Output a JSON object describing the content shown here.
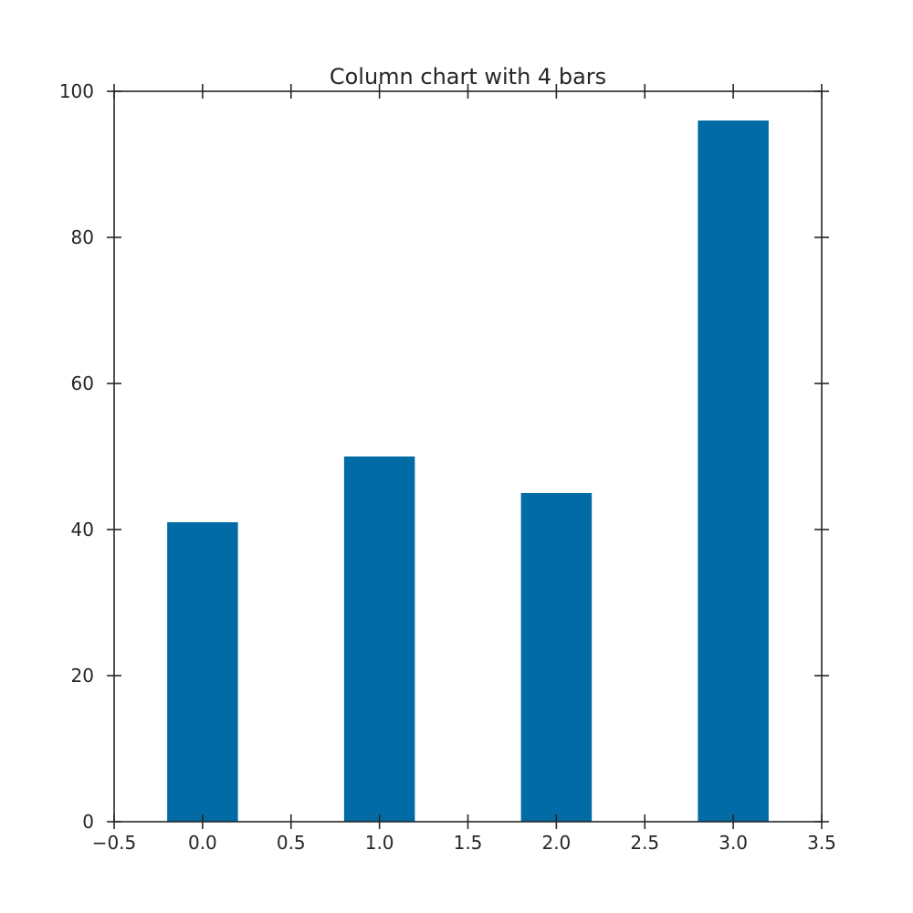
{
  "chart_data": {
    "type": "bar",
    "title": "Column chart with 4 bars",
    "xlabel": "",
    "ylabel": "",
    "x": [
      0,
      1,
      2,
      3
    ],
    "values": [
      41,
      50,
      45,
      96
    ],
    "bar_width": 0.4,
    "xlim": [
      -0.5,
      3.5
    ],
    "ylim": [
      0,
      100
    ],
    "xticks": [
      -0.5,
      0.0,
      0.5,
      1.0,
      1.5,
      2.0,
      2.5,
      3.0,
      3.5
    ],
    "xtick_labels": [
      "−0.5",
      "0.0",
      "0.5",
      "1.0",
      "1.5",
      "2.0",
      "2.5",
      "3.0",
      "3.5"
    ],
    "yticks": [
      0,
      20,
      40,
      60,
      80,
      100
    ],
    "ytick_labels": [
      "0",
      "20",
      "40",
      "60",
      "80",
      "100"
    ],
    "bar_color": "#006ba4",
    "grid": false,
    "legend": "none"
  }
}
